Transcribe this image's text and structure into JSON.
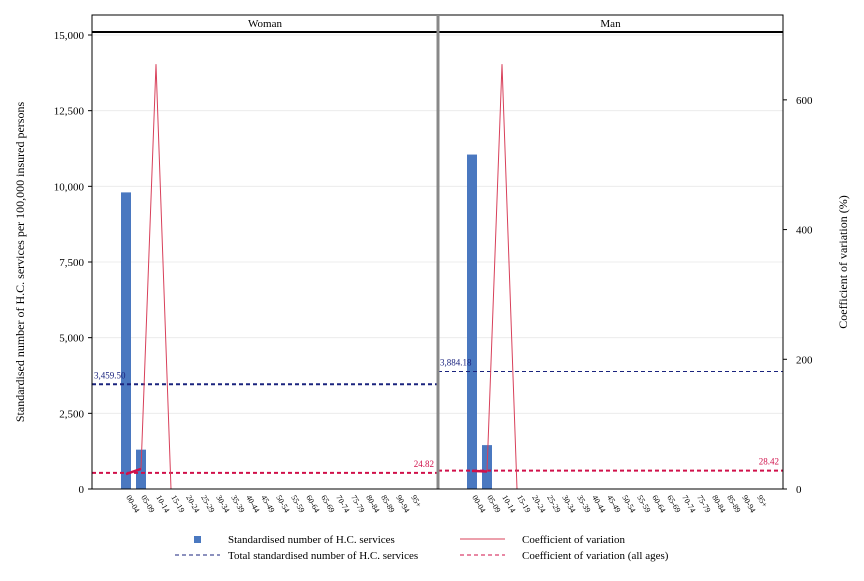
{
  "chart_data": {
    "type": "bar",
    "panels": [
      "Woman",
      "Man"
    ],
    "categories": [
      "00-04",
      "05-09",
      "10-14",
      "15-19",
      "20-24",
      "25-29",
      "30-34",
      "35-39",
      "40-44",
      "45-49",
      "50-54",
      "55-59",
      "60-64",
      "65-69",
      "70-74",
      "75-79",
      "80-84",
      "85-89",
      "90-94",
      "95+"
    ],
    "series": [
      {
        "name": "Standardised number of H.C. services",
        "kind": "bar",
        "axis": "left",
        "values": {
          "Woman": [
            9800,
            1300,
            null,
            null,
            null,
            null,
            null,
            null,
            null,
            null,
            null,
            null,
            null,
            null,
            null,
            null,
            null,
            null,
            null,
            null
          ],
          "Man": [
            11050,
            1450,
            null,
            null,
            null,
            null,
            null,
            null,
            null,
            null,
            null,
            null,
            null,
            null,
            null,
            null,
            null,
            null,
            null,
            null
          ]
        }
      },
      {
        "name": "Coefficient of variation",
        "kind": "line",
        "axis": "right",
        "values": {
          "Woman": [
            23,
            31,
            655,
            0,
            null,
            null,
            null,
            null,
            null,
            null,
            null,
            null,
            null,
            null,
            null,
            null,
            null,
            null,
            null,
            null
          ],
          "Man": [
            28,
            27,
            655,
            0,
            null,
            null,
            null,
            null,
            null,
            null,
            null,
            null,
            null,
            null,
            null,
            null,
            null,
            null,
            null,
            null
          ]
        }
      }
    ],
    "reference_lines": [
      {
        "name": "Total standardised number of H.C. services",
        "axis": "left",
        "values": {
          "Woman": 3459.5,
          "Man": 3884.18
        },
        "labels": {
          "Woman": "3,459.50",
          "Man": "3,884.18"
        }
      },
      {
        "name": "Coefficient of variation (all ages)",
        "axis": "right",
        "values": {
          "Woman": 24.82,
          "Man": 28.42
        },
        "labels": {
          "Woman": "24.82",
          "Man": "28.42"
        }
      }
    ],
    "ylabel": "Standardised number of H.C. services per 100,000 insured persons",
    "y2label": "Coefficient of variation (%)",
    "ylim": [
      0,
      15000
    ],
    "yticks": [
      0,
      2500,
      5000,
      7500,
      10000,
      12500,
      15000
    ],
    "ytick_labels": [
      "0",
      "2,500",
      "5,000",
      "7,500",
      "10,000",
      "12,500",
      "15,000"
    ],
    "y2lim": [
      0,
      700
    ],
    "y2ticks": [
      0,
      200,
      400,
      600
    ],
    "y2tick_labels": [
      "0",
      "200",
      "400",
      "600"
    ],
    "grid": true,
    "legend_position": "bottom",
    "legend": [
      "Standardised number of H.C. services",
      "Coefficient of variation",
      "Total standardised number of H.C. services",
      "Coefficient of variation (all ages)"
    ],
    "colors": {
      "bar": "#4a78c0",
      "cv_line": "#d8405a",
      "total_line": "#1a237e",
      "total_label_woman": "#1a237e",
      "total_label_man": "#1a237e",
      "cv_all_line": "#d0104a",
      "cv_point_marker": "#d0104a",
      "grid": "#ececec",
      "frame": "#000000",
      "panel_divider": "#888888"
    }
  }
}
